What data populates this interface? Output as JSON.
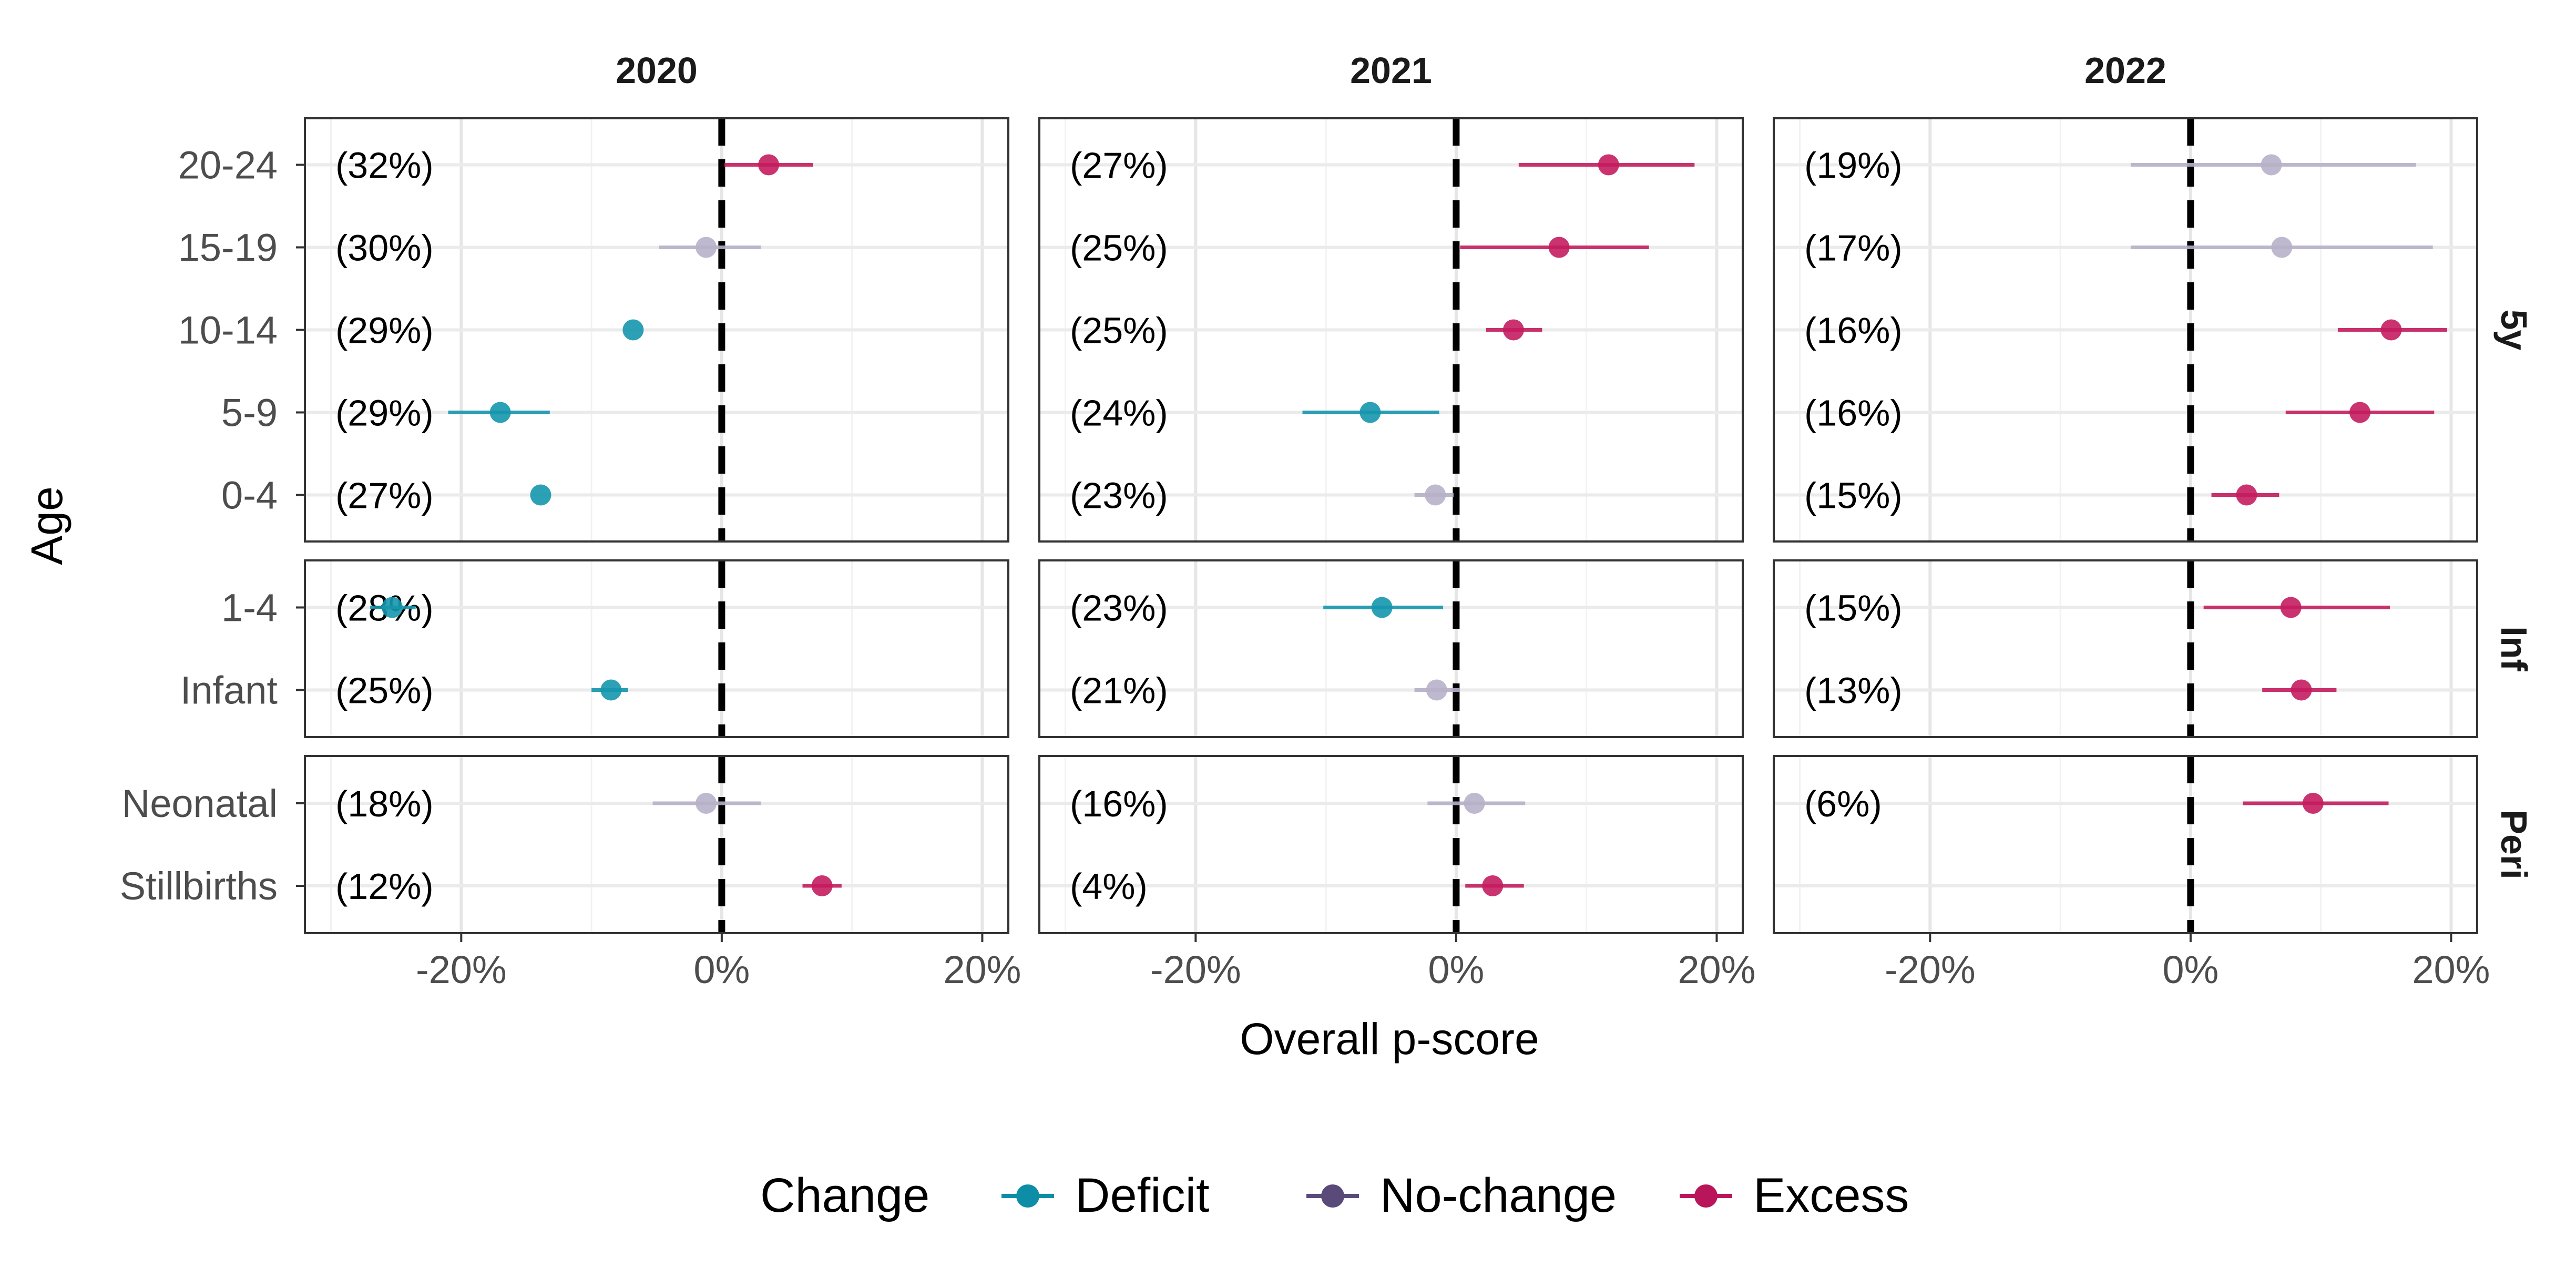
{
  "chart_data": {
    "type": "dot-interval",
    "title": "",
    "xlabel": "Overall p-score",
    "ylabel": "Age",
    "xlim": [
      -0.32,
      0.22
    ],
    "x_ticks": [
      -0.2,
      0.0,
      0.2
    ],
    "x_tick_labels": [
      "-20%",
      "0%",
      "20%"
    ],
    "reference_line": 0,
    "grid": true,
    "years": [
      "2020",
      "2021",
      "2022"
    ],
    "groups": [
      {
        "label": "5y",
        "categories": [
          "20-24",
          "15-19",
          "10-14",
          "5-9",
          "0-4"
        ]
      },
      {
        "label": "Inf",
        "categories": [
          "1-4",
          "Infant"
        ]
      },
      {
        "label": "Peri",
        "categories": [
          "Neonatal",
          "Stillbirths"
        ]
      }
    ],
    "legend": {
      "title": "Change",
      "position": "bottom",
      "items": [
        {
          "key": "Deficit",
          "label": "Deficit",
          "color": "#0e8da6"
        },
        {
          "key": "No-change",
          "label": "No-change",
          "color": "#5a4a7a"
        },
        {
          "key": "Excess",
          "label": "Excess",
          "color": "#b8155a"
        }
      ]
    },
    "point_colors": {
      "Deficit": "#1596ad",
      "No-change": "#b7b1c9",
      "Excess": "#c41d5f"
    },
    "panels": [
      {
        "year": "2020",
        "group": "5y",
        "points": [
          {
            "cat": "20-24",
            "est": 0.036,
            "lo": 0.002,
            "hi": 0.07,
            "change": "Excess",
            "label": "(32%)"
          },
          {
            "cat": "15-19",
            "est": -0.012,
            "lo": -0.048,
            "hi": 0.03,
            "change": "No-change",
            "label": "(30%)"
          },
          {
            "cat": "10-14",
            "est": -0.068,
            "lo": -0.068,
            "hi": -0.068,
            "change": "Deficit",
            "label": "(29%)"
          },
          {
            "cat": "5-9",
            "est": -0.17,
            "lo": -0.21,
            "hi": -0.132,
            "change": "Deficit",
            "label": "(29%)"
          },
          {
            "cat": "0-4",
            "est": -0.139,
            "lo": -0.139,
            "hi": -0.139,
            "change": "Deficit",
            "label": "(27%)"
          }
        ]
      },
      {
        "year": "2020",
        "group": "Inf",
        "points": [
          {
            "cat": "1-4",
            "est": -0.253,
            "lo": -0.27,
            "hi": -0.235,
            "change": "Deficit",
            "label": "(28%)"
          },
          {
            "cat": "Infant",
            "est": -0.085,
            "lo": -0.1,
            "hi": -0.072,
            "change": "Deficit",
            "label": "(25%)"
          }
        ]
      },
      {
        "year": "2020",
        "group": "Peri",
        "points": [
          {
            "cat": "Neonatal",
            "est": -0.012,
            "lo": -0.053,
            "hi": 0.03,
            "change": "No-change",
            "label": "(18%)"
          },
          {
            "cat": "Stillbirths",
            "est": 0.077,
            "lo": 0.062,
            "hi": 0.092,
            "change": "Excess",
            "label": "(12%)"
          }
        ]
      },
      {
        "year": "2021",
        "group": "5y",
        "points": [
          {
            "cat": "20-24",
            "est": 0.117,
            "lo": 0.048,
            "hi": 0.183,
            "change": "Excess",
            "label": "(27%)"
          },
          {
            "cat": "15-19",
            "est": 0.079,
            "lo": 0.003,
            "hi": 0.148,
            "change": "Excess",
            "label": "(25%)"
          },
          {
            "cat": "10-14",
            "est": 0.044,
            "lo": 0.023,
            "hi": 0.066,
            "change": "Excess",
            "label": "(25%)"
          },
          {
            "cat": "5-9",
            "est": -0.066,
            "lo": -0.118,
            "hi": -0.013,
            "change": "Deficit",
            "label": "(24%)"
          },
          {
            "cat": "0-4",
            "est": -0.016,
            "lo": -0.032,
            "hi": -0.002,
            "change": "No-change",
            "label": "(23%)"
          }
        ]
      },
      {
        "year": "2021",
        "group": "Inf",
        "points": [
          {
            "cat": "1-4",
            "est": -0.057,
            "lo": -0.102,
            "hi": -0.01,
            "change": "Deficit",
            "label": "(23%)"
          },
          {
            "cat": "Infant",
            "est": -0.015,
            "lo": -0.032,
            "hi": 0.003,
            "change": "No-change",
            "label": "(21%)"
          }
        ]
      },
      {
        "year": "2021",
        "group": "Peri",
        "points": [
          {
            "cat": "Neonatal",
            "est": 0.014,
            "lo": -0.022,
            "hi": 0.053,
            "change": "No-change",
            "label": "(16%)"
          },
          {
            "cat": "Stillbirths",
            "est": 0.028,
            "lo": 0.007,
            "hi": 0.052,
            "change": "Excess",
            "label": "(4%)"
          }
        ]
      },
      {
        "year": "2022",
        "group": "5y",
        "points": [
          {
            "cat": "20-24",
            "est": 0.062,
            "lo": -0.046,
            "hi": 0.173,
            "change": "No-change",
            "label": "(19%)"
          },
          {
            "cat": "15-19",
            "est": 0.07,
            "lo": -0.046,
            "hi": 0.186,
            "change": "No-change",
            "label": "(17%)"
          },
          {
            "cat": "10-14",
            "est": 0.154,
            "lo": 0.113,
            "hi": 0.197,
            "change": "Excess",
            "label": "(16%)"
          },
          {
            "cat": "5-9",
            "est": 0.13,
            "lo": 0.073,
            "hi": 0.187,
            "change": "Excess",
            "label": "(16%)"
          },
          {
            "cat": "0-4",
            "est": 0.043,
            "lo": 0.016,
            "hi": 0.068,
            "change": "Excess",
            "label": "(15%)"
          }
        ]
      },
      {
        "year": "2022",
        "group": "Inf",
        "points": [
          {
            "cat": "1-4",
            "est": 0.077,
            "lo": 0.01,
            "hi": 0.153,
            "change": "Excess",
            "label": "(15%)"
          },
          {
            "cat": "Infant",
            "est": 0.085,
            "lo": 0.055,
            "hi": 0.112,
            "change": "Excess",
            "label": "(13%)"
          }
        ]
      },
      {
        "year": "2022",
        "group": "Peri",
        "points": [
          {
            "cat": "Neonatal",
            "est": 0.094,
            "lo": 0.04,
            "hi": 0.152,
            "change": "Excess",
            "label": "(6%)"
          }
        ]
      }
    ]
  }
}
